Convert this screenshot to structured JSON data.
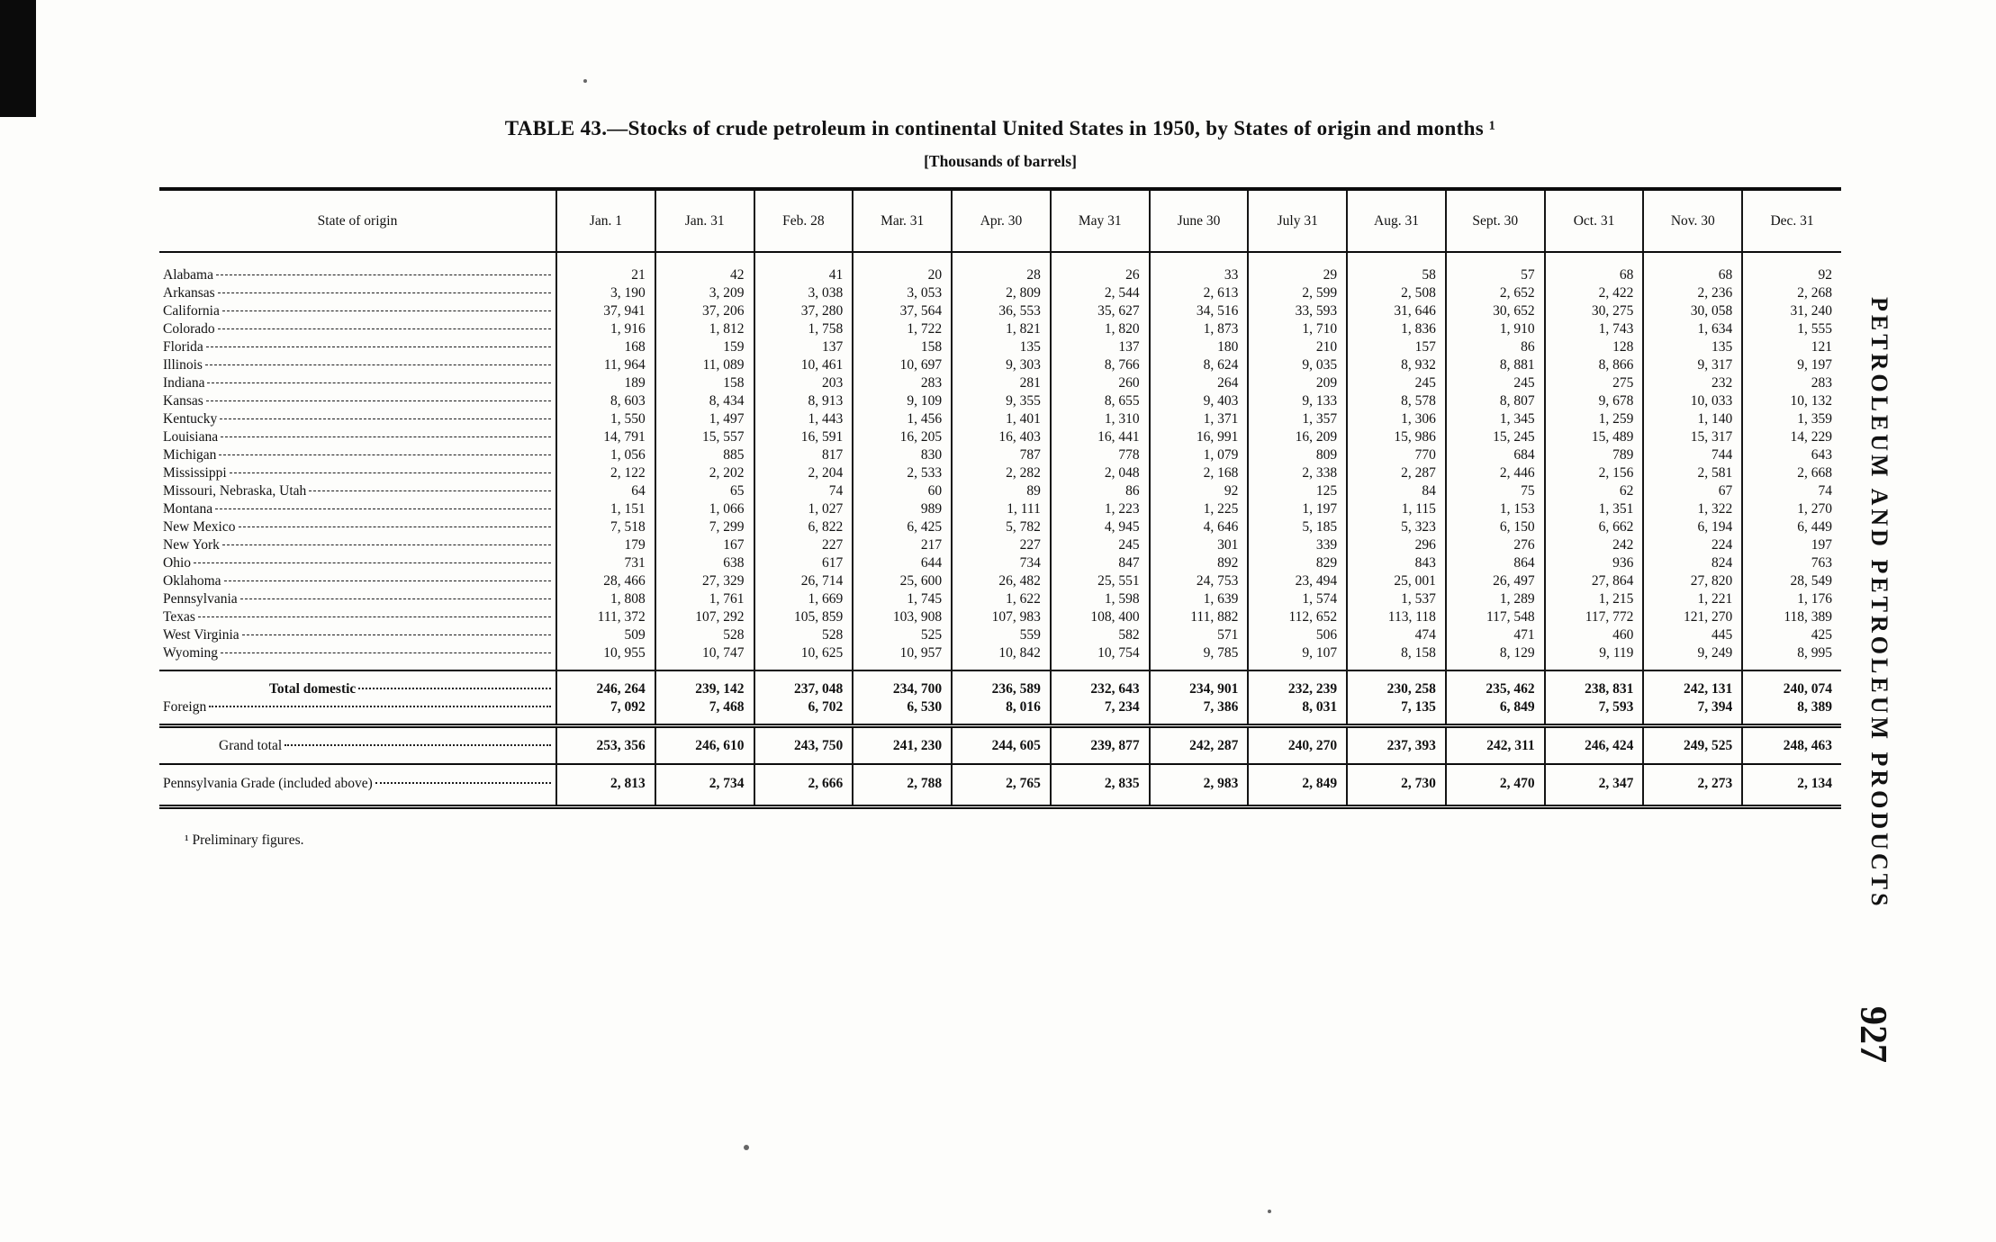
{
  "page": {
    "title": "TABLE 43.—Stocks of crude petroleum in continental United States in 1950, by States of origin and months ¹",
    "unit_note": "[Thousands of barrels]",
    "footnote": "¹ Preliminary figures.",
    "side_running_title": "PETROLEUM AND PETROLEUM PRODUCTS",
    "page_number": "927"
  },
  "table": {
    "columns": [
      "State of origin",
      "Jan. 1",
      "Jan. 31",
      "Feb. 28",
      "Mar. 31",
      "Apr. 30",
      "May 31",
      "June 30",
      "July 31",
      "Aug. 31",
      "Sept. 30",
      "Oct. 31",
      "Nov. 30",
      "Dec. 31"
    ],
    "rows": [
      {
        "label": "Alabama",
        "kind": "state",
        "leader": "dash",
        "values": [
          "21",
          "42",
          "41",
          "20",
          "28",
          "26",
          "33",
          "29",
          "58",
          "57",
          "68",
          "68",
          "92"
        ]
      },
      {
        "label": "Arkansas",
        "kind": "state",
        "leader": "dash",
        "values": [
          "3, 190",
          "3, 209",
          "3, 038",
          "3, 053",
          "2, 809",
          "2, 544",
          "2, 613",
          "2, 599",
          "2, 508",
          "2, 652",
          "2, 422",
          "2, 236",
          "2, 268"
        ]
      },
      {
        "label": "California",
        "kind": "state",
        "leader": "dash",
        "values": [
          "37, 941",
          "37, 206",
          "37, 280",
          "37, 564",
          "36, 553",
          "35, 627",
          "34, 516",
          "33, 593",
          "31, 646",
          "30, 652",
          "30, 275",
          "30, 058",
          "31, 240"
        ]
      },
      {
        "label": "Colorado",
        "kind": "state",
        "leader": "dash",
        "values": [
          "1, 916",
          "1, 812",
          "1, 758",
          "1, 722",
          "1, 821",
          "1, 820",
          "1, 873",
          "1, 710",
          "1, 836",
          "1, 910",
          "1, 743",
          "1, 634",
          "1, 555"
        ]
      },
      {
        "label": "Florida",
        "kind": "state",
        "leader": "dash",
        "values": [
          "168",
          "159",
          "137",
          "158",
          "135",
          "137",
          "180",
          "210",
          "157",
          "86",
          "128",
          "135",
          "121"
        ]
      },
      {
        "label": "Illinois",
        "kind": "state",
        "leader": "dash",
        "values": [
          "11, 964",
          "11, 089",
          "10, 461",
          "10, 697",
          "9, 303",
          "8, 766",
          "8, 624",
          "9, 035",
          "8, 932",
          "8, 881",
          "8, 866",
          "9, 317",
          "9, 197"
        ]
      },
      {
        "label": "Indiana",
        "kind": "state",
        "leader": "dash",
        "values": [
          "189",
          "158",
          "203",
          "283",
          "281",
          "260",
          "264",
          "209",
          "245",
          "245",
          "275",
          "232",
          "283"
        ]
      },
      {
        "label": "Kansas",
        "kind": "state",
        "leader": "dash",
        "values": [
          "8, 603",
          "8, 434",
          "8, 913",
          "9, 109",
          "9, 355",
          "8, 655",
          "9, 403",
          "9, 133",
          "8, 578",
          "8, 807",
          "9, 678",
          "10, 033",
          "10, 132"
        ]
      },
      {
        "label": "Kentucky",
        "kind": "state",
        "leader": "dash",
        "values": [
          "1, 550",
          "1, 497",
          "1, 443",
          "1, 456",
          "1, 401",
          "1, 310",
          "1, 371",
          "1, 357",
          "1, 306",
          "1, 345",
          "1, 259",
          "1, 140",
          "1, 359"
        ]
      },
      {
        "label": "Louisiana",
        "kind": "state",
        "leader": "dash",
        "values": [
          "14, 791",
          "15, 557",
          "16, 591",
          "16, 205",
          "16, 403",
          "16, 441",
          "16, 991",
          "16, 209",
          "15, 986",
          "15, 245",
          "15, 489",
          "15, 317",
          "14, 229"
        ]
      },
      {
        "label": "Michigan",
        "kind": "state",
        "leader": "dash",
        "values": [
          "1, 056",
          "885",
          "817",
          "830",
          "787",
          "778",
          "1, 079",
          "809",
          "770",
          "684",
          "789",
          "744",
          "643"
        ]
      },
      {
        "label": "Mississippi",
        "kind": "state",
        "leader": "dash",
        "values": [
          "2, 122",
          "2, 202",
          "2, 204",
          "2, 533",
          "2, 282",
          "2, 048",
          "2, 168",
          "2, 338",
          "2, 287",
          "2, 446",
          "2, 156",
          "2, 581",
          "2, 668"
        ]
      },
      {
        "label": "Missouri, Nebraska, Utah",
        "kind": "state",
        "leader": "dash",
        "values": [
          "64",
          "65",
          "74",
          "60",
          "89",
          "86",
          "92",
          "125",
          "84",
          "75",
          "62",
          "67",
          "74"
        ]
      },
      {
        "label": "Montana",
        "kind": "state",
        "leader": "dash",
        "values": [
          "1, 151",
          "1, 066",
          "1, 027",
          "989",
          "1, 111",
          "1, 223",
          "1, 225",
          "1, 197",
          "1, 115",
          "1, 153",
          "1, 351",
          "1, 322",
          "1, 270"
        ]
      },
      {
        "label": "New Mexico",
        "kind": "state",
        "leader": "dash",
        "values": [
          "7, 518",
          "7, 299",
          "6, 822",
          "6, 425",
          "5, 782",
          "4, 945",
          "4, 646",
          "5, 185",
          "5, 323",
          "6, 150",
          "6, 662",
          "6, 194",
          "6, 449"
        ]
      },
      {
        "label": "New York",
        "kind": "state",
        "leader": "dash",
        "values": [
          "179",
          "167",
          "227",
          "217",
          "227",
          "245",
          "301",
          "339",
          "296",
          "276",
          "242",
          "224",
          "197"
        ]
      },
      {
        "label": "Ohio",
        "kind": "state",
        "leader": "dash",
        "values": [
          "731",
          "638",
          "617",
          "644",
          "734",
          "847",
          "892",
          "829",
          "843",
          "864",
          "936",
          "824",
          "763"
        ]
      },
      {
        "label": "Oklahoma",
        "kind": "state",
        "leader": "dash",
        "values": [
          "28, 466",
          "27, 329",
          "26, 714",
          "25, 600",
          "26, 482",
          "25, 551",
          "24, 753",
          "23, 494",
          "25, 001",
          "26, 497",
          "27, 864",
          "27, 820",
          "28, 549"
        ]
      },
      {
        "label": "Pennsylvania",
        "kind": "state",
        "leader": "dash",
        "values": [
          "1, 808",
          "1, 761",
          "1, 669",
          "1, 745",
          "1, 622",
          "1, 598",
          "1, 639",
          "1, 574",
          "1, 537",
          "1, 289",
          "1, 215",
          "1, 221",
          "1, 176"
        ]
      },
      {
        "label": "Texas",
        "kind": "state",
        "leader": "dash",
        "values": [
          "111, 372",
          "107, 292",
          "105, 859",
          "103, 908",
          "107, 983",
          "108, 400",
          "111, 882",
          "112, 652",
          "113, 118",
          "117, 548",
          "117, 772",
          "121, 270",
          "118, 389"
        ]
      },
      {
        "label": "West Virginia",
        "kind": "state",
        "leader": "dash",
        "values": [
          "509",
          "528",
          "528",
          "525",
          "559",
          "582",
          "571",
          "506",
          "474",
          "471",
          "460",
          "445",
          "425"
        ]
      },
      {
        "label": "Wyoming",
        "kind": "state",
        "leader": "dash",
        "values": [
          "10, 955",
          "10, 747",
          "10, 625",
          "10, 957",
          "10, 842",
          "10, 754",
          "9, 785",
          "9, 107",
          "8, 158",
          "8, 129",
          "9, 119",
          "9, 249",
          "8, 995"
        ]
      },
      {
        "label": "Total domestic",
        "kind": "total",
        "leader": "dot",
        "values": [
          "246, 264",
          "239, 142",
          "237, 048",
          "234, 700",
          "236, 589",
          "232, 643",
          "234, 901",
          "232, 239",
          "230, 258",
          "235, 462",
          "238, 831",
          "242, 131",
          "240, 074"
        ]
      },
      {
        "label": "Foreign",
        "kind": "foreign",
        "leader": "dot",
        "values": [
          "7, 092",
          "7, 468",
          "6, 702",
          "6, 530",
          "8, 016",
          "7, 234",
          "7, 386",
          "8, 031",
          "7, 135",
          "6, 849",
          "7, 593",
          "7, 394",
          "8, 389"
        ]
      },
      {
        "label": "Grand total",
        "kind": "grand",
        "leader": "dot",
        "values": [
          "253, 356",
          "246, 610",
          "243, 750",
          "241, 230",
          "244, 605",
          "239, 877",
          "242, 287",
          "240, 270",
          "237, 393",
          "242, 311",
          "246, 424",
          "249, 525",
          "248, 463"
        ]
      },
      {
        "label": "Pennsylvania Grade (included above)",
        "kind": "pagrade",
        "leader": "dot",
        "values": [
          "2, 813",
          "2, 734",
          "2, 666",
          "2, 788",
          "2, 765",
          "2, 835",
          "2, 983",
          "2, 849",
          "2, 730",
          "2, 470",
          "2, 347",
          "2, 273",
          "2, 134"
        ]
      }
    ]
  }
}
